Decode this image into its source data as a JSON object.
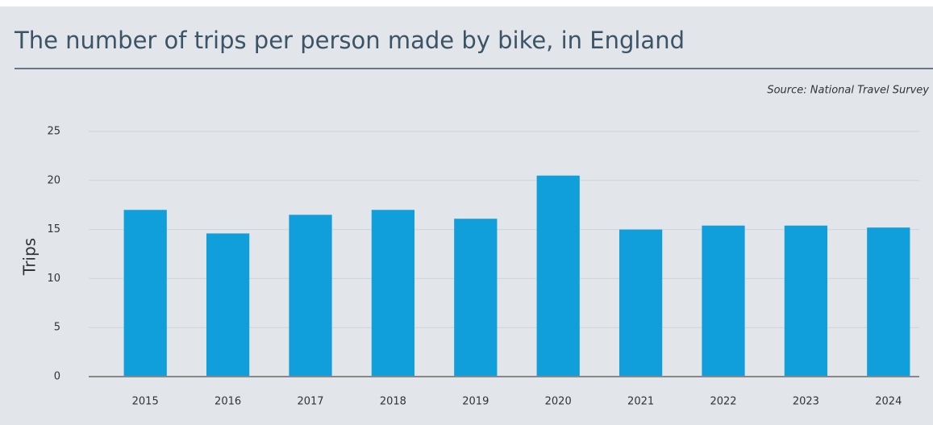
{
  "chart_data": {
    "type": "bar",
    "title": "The number of trips per person made by bike, in England",
    "source": "Source: National Travel Survey",
    "y_label": "Trips",
    "categories": [
      "2015",
      "2016",
      "2017",
      "2018",
      "2019",
      "2020",
      "2021",
      "2022",
      "2023",
      "2024"
    ],
    "values": [
      17.0,
      14.6,
      16.5,
      17.0,
      16.1,
      20.5,
      15.0,
      15.4,
      15.4,
      15.2
    ],
    "color": "#119fdb",
    "ylim": [
      0,
      25
    ],
    "yticks": [
      0,
      5,
      10,
      15,
      20,
      25
    ],
    "grid": true
  }
}
